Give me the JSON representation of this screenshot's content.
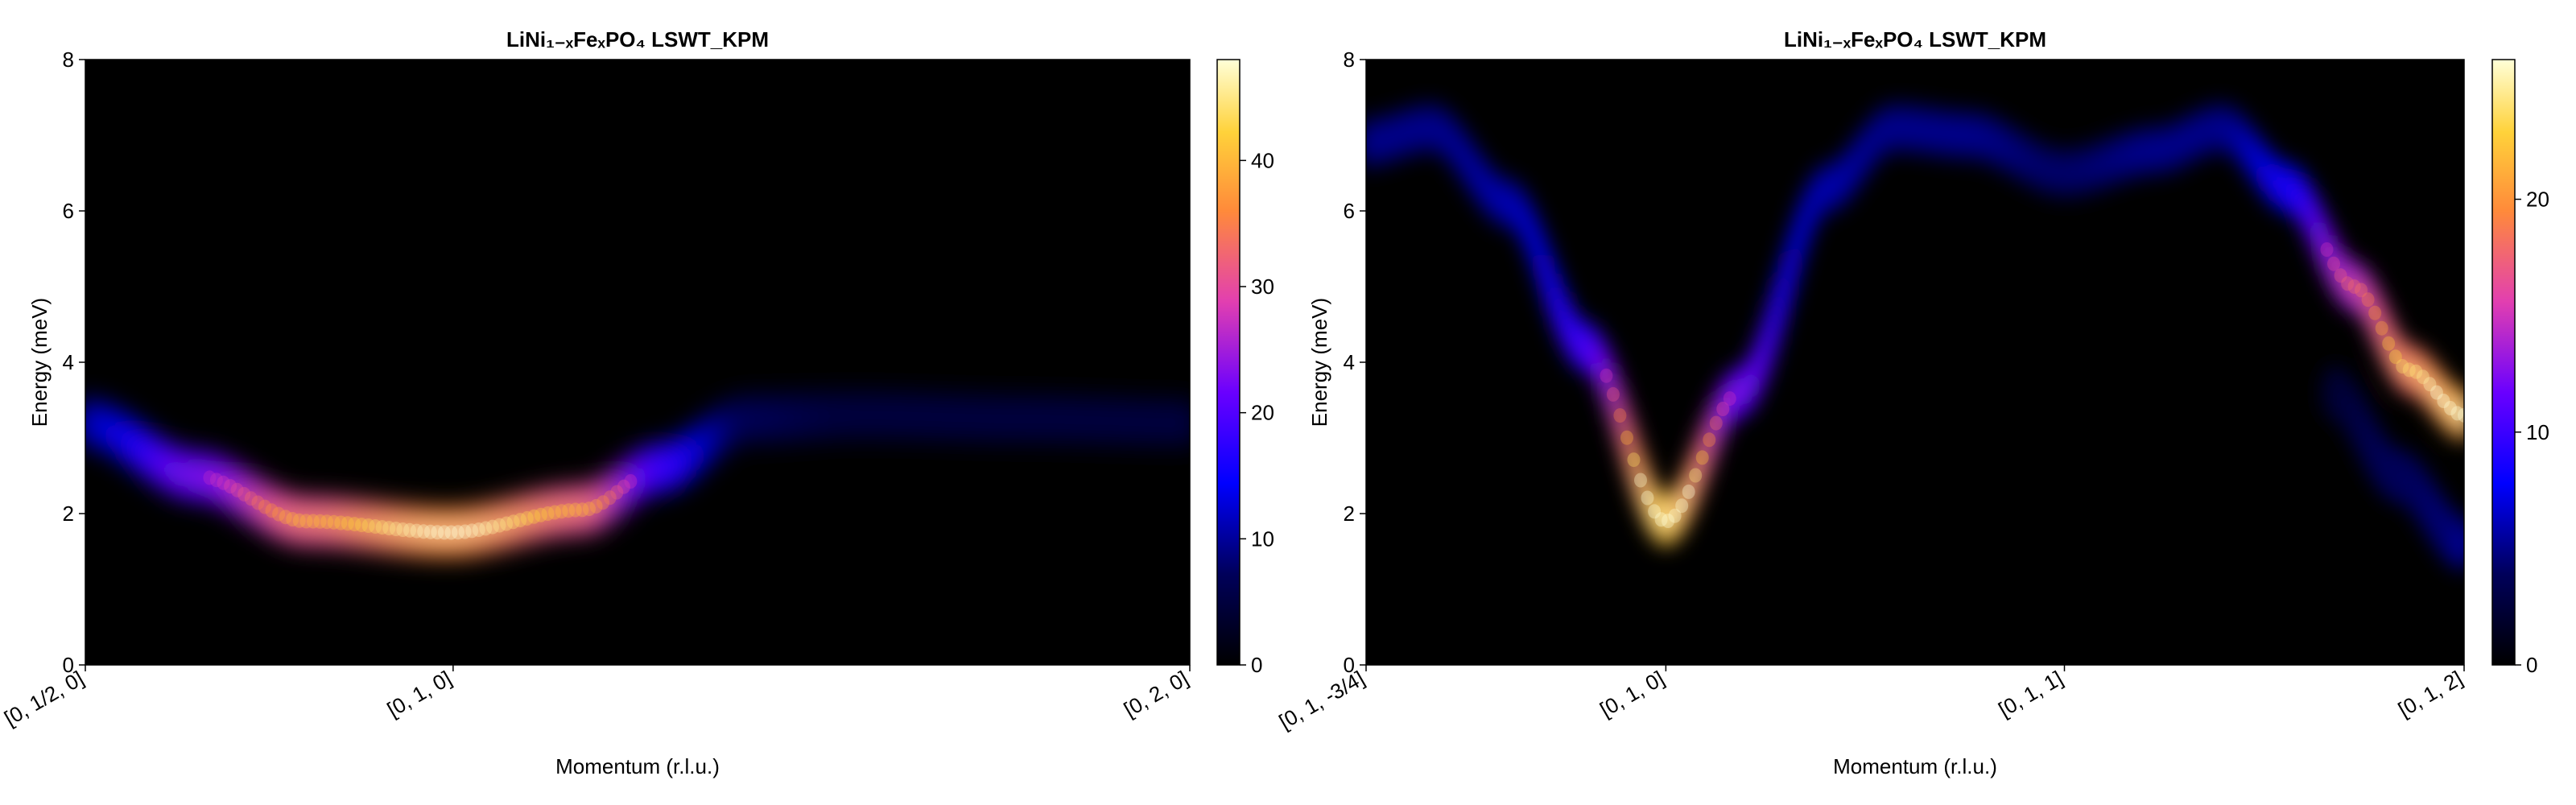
{
  "chart_data": [
    {
      "type": "heatmap",
      "title": "LiNi₁₋ₓFeₓPO₄ LSWT_KPM",
      "xlabel": "Momentum (r.l.u.)",
      "ylabel": "Energy (meV)",
      "x_ticks": [
        "[0, 1/2, 0]",
        "[0, 1, 0]",
        "[0, 2, 0]"
      ],
      "x_tick_positions": [
        0,
        0.333,
        1
      ],
      "ylim": [
        0,
        8
      ],
      "y_ticks": [
        "0",
        "2",
        "4",
        "6",
        "8"
      ],
      "colorbar": {
        "range": [
          0,
          48
        ],
        "ticks": [
          "0",
          "10",
          "20",
          "30",
          "40"
        ],
        "colormap": "gnuplot2"
      },
      "band_energy_vs_momentum": {
        "x": [
          0,
          0.1,
          0.2,
          0.33,
          0.45,
          0.52,
          0.6,
          0.7,
          0.85,
          1.0
        ],
        "energy": [
          3.2,
          2.5,
          1.9,
          1.75,
          2.05,
          2.6,
          3.25,
          3.3,
          3.25,
          3.2
        ],
        "intensity": [
          14,
          26,
          40,
          48,
          40,
          22,
          8,
          6,
          6,
          6
        ]
      }
    },
    {
      "type": "heatmap",
      "title": "LiNi₁₋ₓFeₓPO₄ LSWT_KPM",
      "xlabel": "Momentum (r.l.u.)",
      "ylabel": "Energy (meV)",
      "x_ticks": [
        "[0, 1, -3/4]",
        "[0, 1, 0]",
        "[0, 1, 1]",
        "[0, 1, 2]"
      ],
      "x_tick_positions": [
        0,
        0.273,
        0.636,
        1
      ],
      "ylim": [
        0,
        8
      ],
      "y_ticks": [
        "0",
        "2",
        "4",
        "6",
        "8"
      ],
      "colorbar": {
        "range": [
          0,
          26
        ],
        "ticks": [
          "0",
          "10",
          "20"
        ],
        "colormap": "gnuplot2"
      },
      "band_energy_vs_momentum": {
        "x": [
          0,
          0.06,
          0.13,
          0.2,
          0.273,
          0.34,
          0.42,
          0.48,
          0.55,
          0.636,
          0.72,
          0.78,
          0.84,
          0.9,
          0.95,
          1.0
        ],
        "energy": [
          6.9,
          7.1,
          6.1,
          4.2,
          1.9,
          3.6,
          6.3,
          7.1,
          7.0,
          6.5,
          6.8,
          7.1,
          6.3,
          5.0,
          3.9,
          3.3
        ],
        "intensity": [
          6,
          6,
          7,
          12,
          30,
          14,
          7,
          6,
          6,
          5,
          6,
          6,
          10,
          18,
          24,
          28
        ]
      },
      "secondary_band": {
        "x": [
          0.88,
          0.94,
          1.0
        ],
        "energy": [
          3.6,
          2.5,
          1.6
        ],
        "intensity": [
          3,
          5,
          6
        ]
      }
    }
  ]
}
